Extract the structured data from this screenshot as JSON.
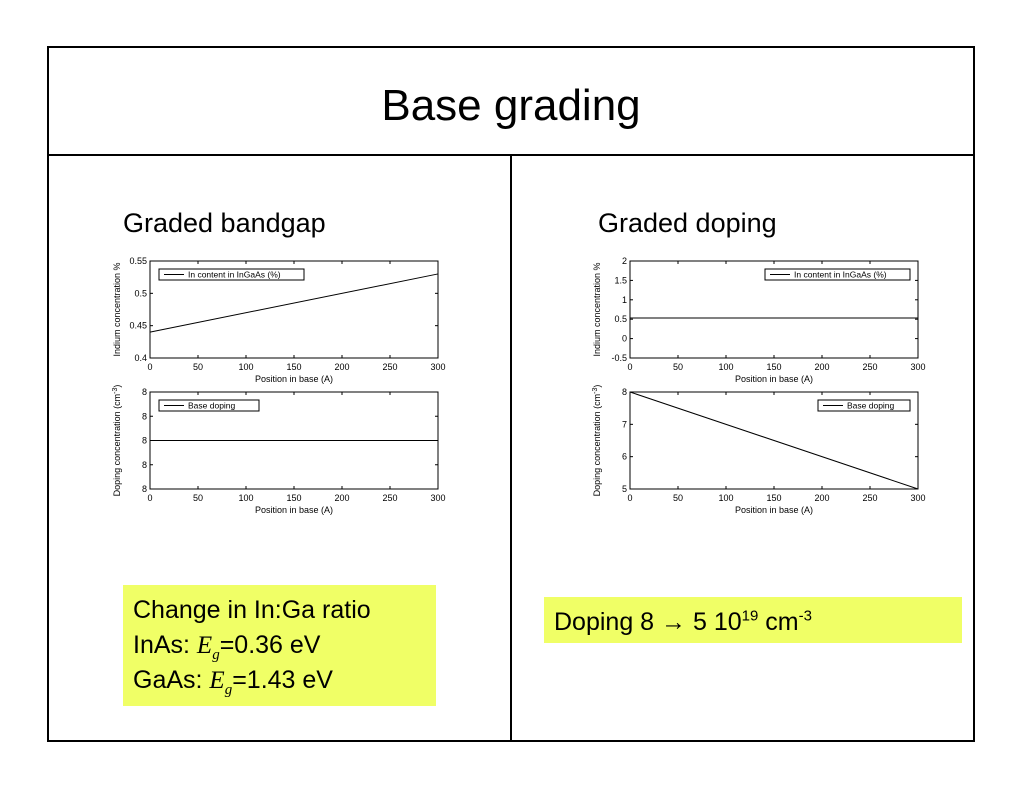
{
  "slide": {
    "title": "Base grading",
    "left_heading": "Graded bandgap",
    "right_heading": "Graded doping",
    "left_note": {
      "line1": "Change in In:Ga ratio",
      "line2_prefix": "InAs: ",
      "line3_prefix": "GaAs: ",
      "var_main": "E",
      "var_sub": "g",
      "line2_value": "=0.36 eV",
      "line3_value": "=1.43 eV"
    },
    "right_note": {
      "text": "Doping 8 ",
      "arrow": "→",
      "value": " 5 10",
      "exp": "19",
      "unit": " cm",
      "unit_exp": "-3"
    }
  },
  "chart_data": [
    {
      "id": "left-top",
      "type": "line",
      "xlabel": "Position in base (A)",
      "ylabel": "Indium concentration %",
      "xlim": [
        0,
        300
      ],
      "ylim": [
        0.4,
        0.55
      ],
      "xticks": [
        "0",
        "50",
        "100",
        "150",
        "200",
        "250",
        "300"
      ],
      "yticks": [
        "0.4",
        "0.45",
        "0.5",
        "0.55"
      ],
      "legend": "top-left",
      "series": [
        {
          "name": "In content in InGaAs (%)",
          "x": [
            0,
            300
          ],
          "y": [
            0.44,
            0.53
          ]
        }
      ]
    },
    {
      "id": "left-bottom",
      "type": "line",
      "xlabel": "Position in base (A)",
      "ylabel": "Doping concentration   (cm",
      "ylabel_sup": "-3",
      "ylabel_end": ")",
      "xlim": [
        0,
        300
      ],
      "ylim": [
        0,
        4
      ],
      "xticks": [
        "0",
        "50",
        "100",
        "150",
        "200",
        "250",
        "300"
      ],
      "yticks": [
        "8",
        "8",
        "8",
        "8",
        "8"
      ],
      "legend": "top-left",
      "series": [
        {
          "name": "Base doping",
          "x": [
            0,
            300
          ],
          "y": [
            2,
            2
          ]
        }
      ]
    },
    {
      "id": "right-top",
      "type": "line",
      "xlabel": "Position in base (A)",
      "ylabel": "Indium concentration %",
      "xlim": [
        0,
        300
      ],
      "ylim": [
        -0.5,
        2
      ],
      "xticks": [
        "0",
        "50",
        "100",
        "150",
        "200",
        "250",
        "300"
      ],
      "yticks": [
        "-0.5",
        "0",
        "0.5",
        "1",
        "1.5",
        "2"
      ],
      "legend": "top-right",
      "series": [
        {
          "name": "In content in InGaAs (%)",
          "x": [
            0,
            300
          ],
          "y": [
            0.53,
            0.53
          ]
        }
      ]
    },
    {
      "id": "right-bottom",
      "type": "line",
      "xlabel": "Position in base (A)",
      "ylabel": "Doping concentration   (cm",
      "ylabel_sup": "-3",
      "ylabel_end": ")",
      "xlim": [
        0,
        300
      ],
      "ylim": [
        5,
        8
      ],
      "xticks": [
        "0",
        "50",
        "100",
        "150",
        "200",
        "250",
        "300"
      ],
      "yticks": [
        "5",
        "6",
        "7",
        "8"
      ],
      "legend": "top-right",
      "series": [
        {
          "name": "Base doping",
          "x": [
            0,
            300
          ],
          "y": [
            8,
            5
          ]
        }
      ]
    }
  ]
}
